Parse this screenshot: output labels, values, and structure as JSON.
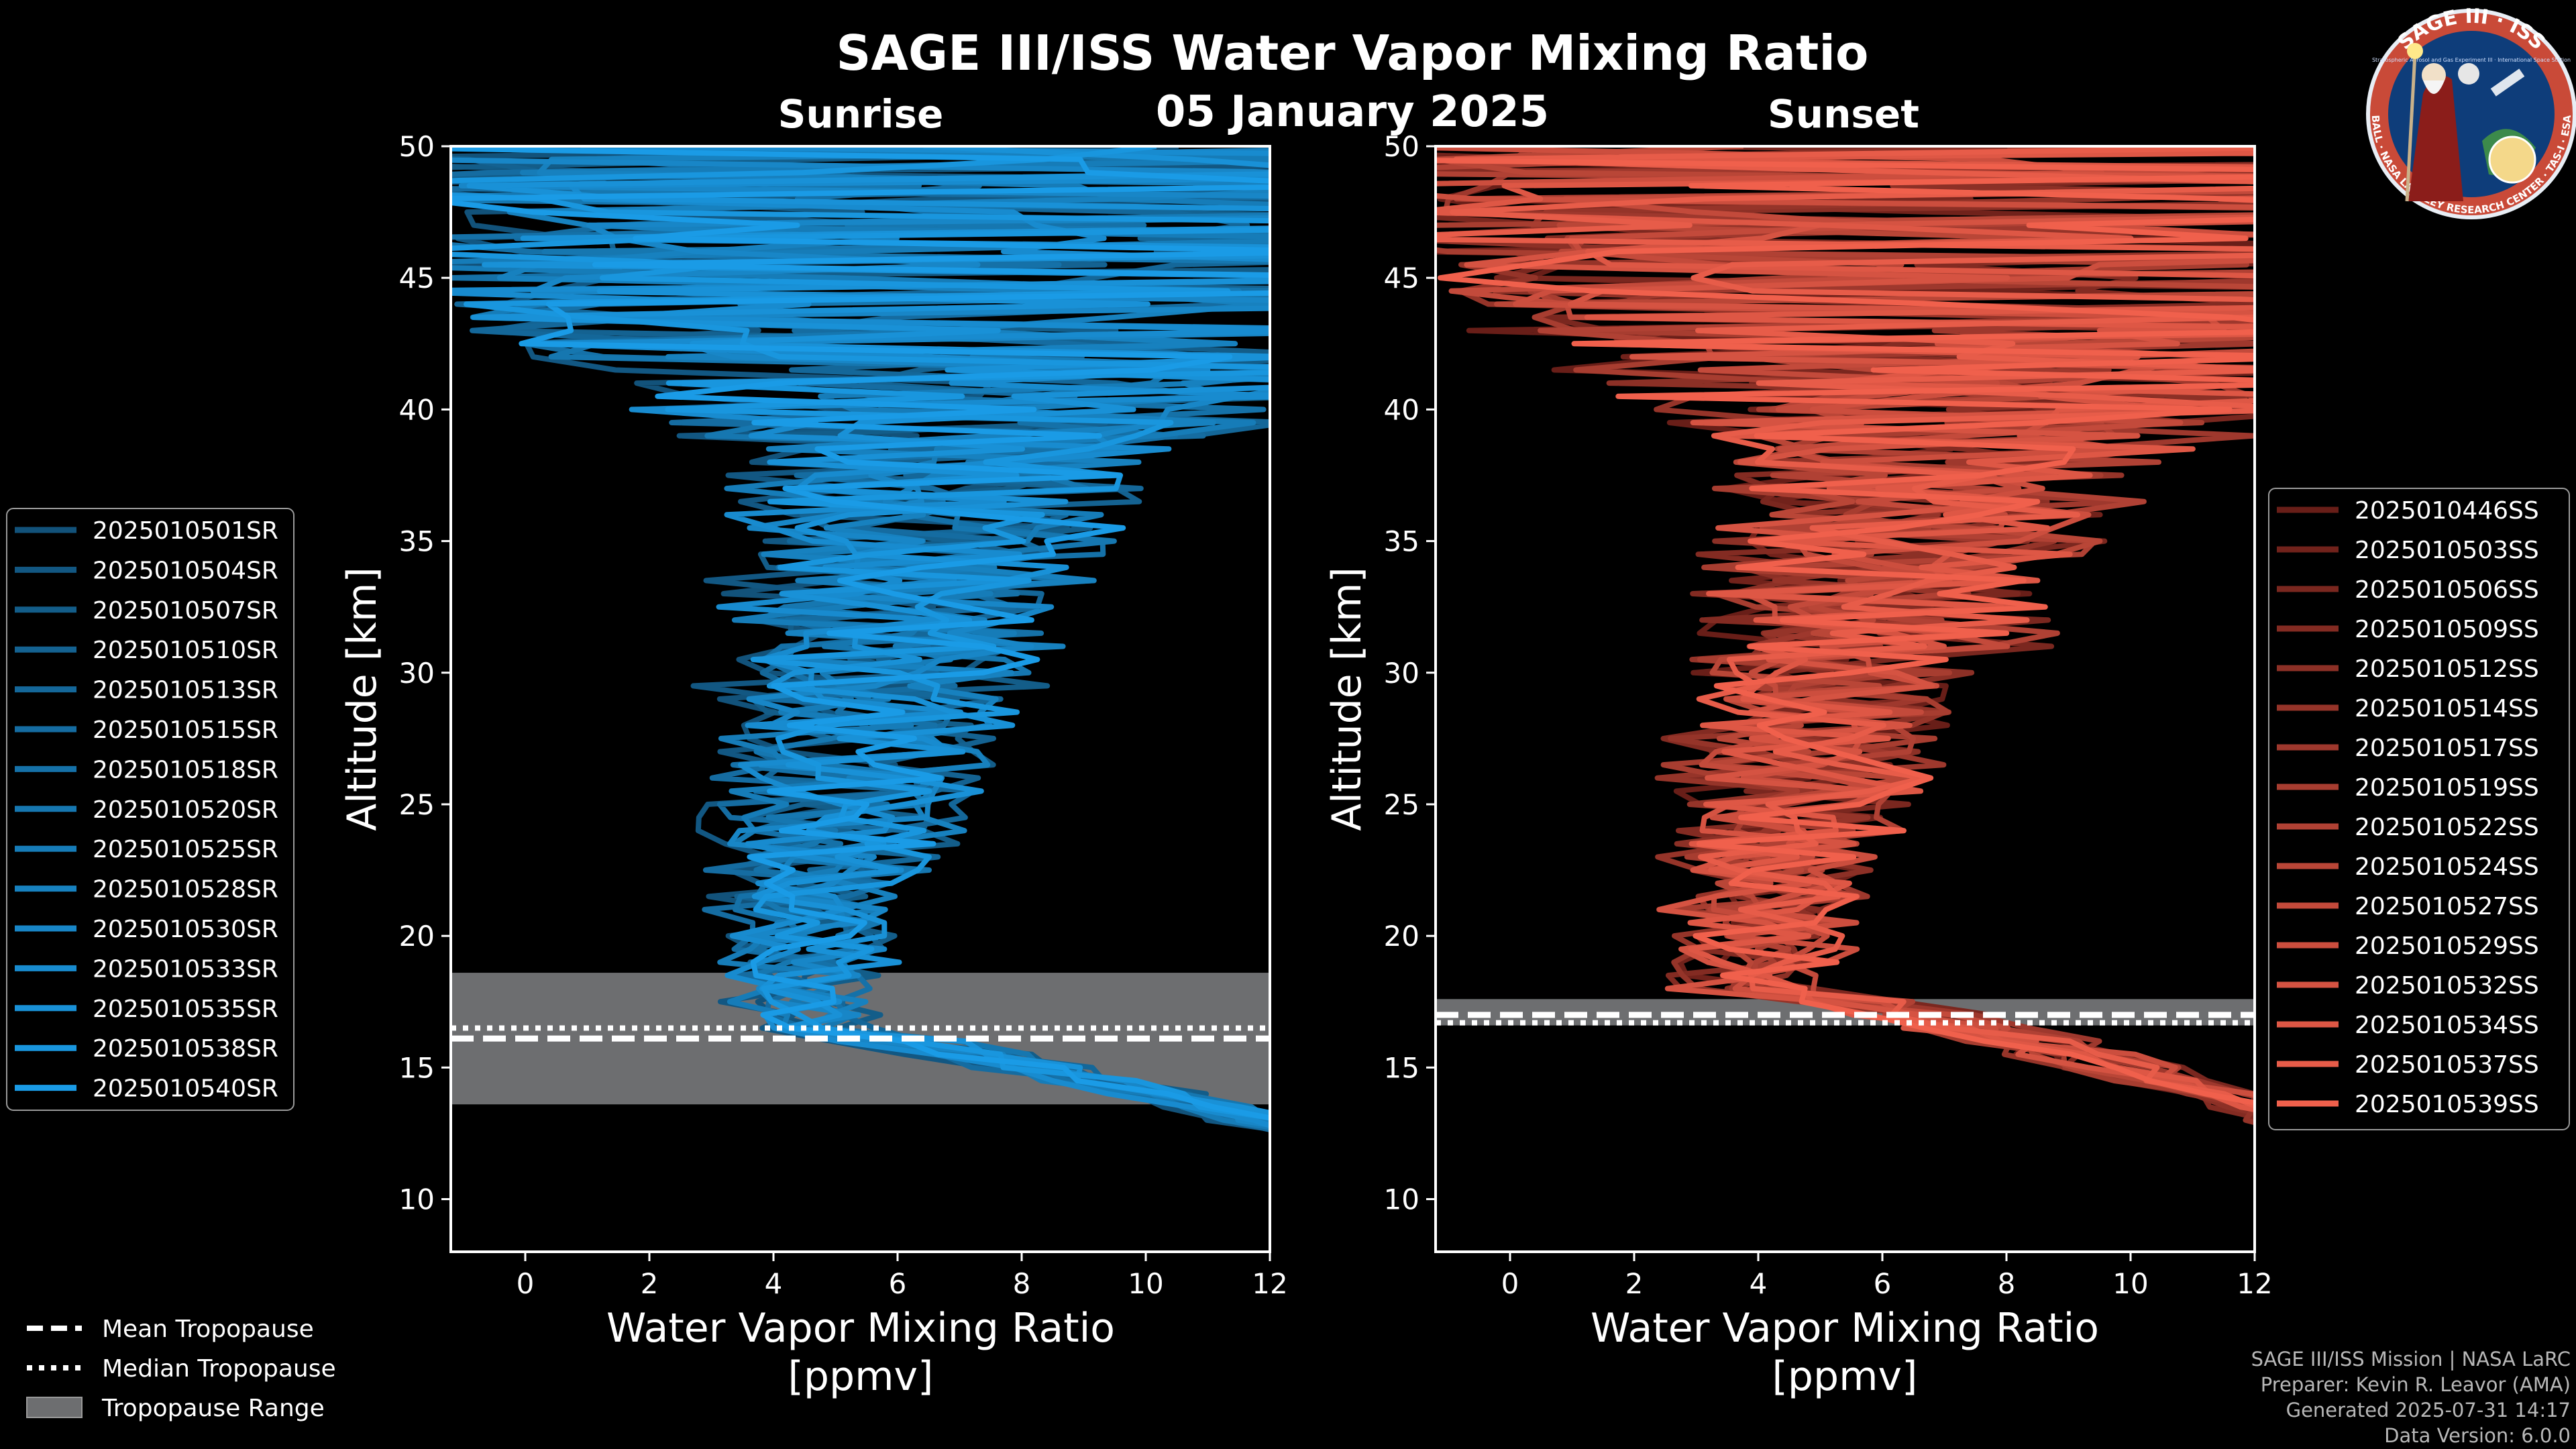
{
  "chart_data": {
    "type": "line",
    "title": "SAGE III/ISS Water Vapor Mixing Ratio",
    "date": "05 January 2025",
    "panels": [
      {
        "name": "sunrise",
        "title": "Sunrise",
        "xlabel": "Water Vapor Mixing Ratio",
        "xunit": "[ppmv]",
        "ylabel": "Altitude [km]",
        "xlim": [
          -1.2,
          12
        ],
        "ylim": [
          8,
          50
        ],
        "xticks": [
          "0",
          "2",
          "4",
          "6",
          "8",
          "10",
          "12"
        ],
        "yticks": [
          "10",
          "15",
          "20",
          "25",
          "30",
          "35",
          "40",
          "45",
          "50"
        ],
        "tropopause": {
          "mean_km": 16.1,
          "median_km": 16.5,
          "range_km": [
            13.6,
            18.6
          ]
        },
        "profile_shape": {
          "min_vmr": 4.4,
          "min_alt_km": 16.5,
          "vmr_50km": 9.0,
          "vmr_10km": 12.0
        },
        "series": [
          "2025010501SR",
          "2025010504SR",
          "2025010507SR",
          "2025010510SR",
          "2025010513SR",
          "2025010515SR",
          "2025010518SR",
          "2025010520SR",
          "2025010525SR",
          "2025010528SR",
          "2025010530SR",
          "2025010533SR",
          "2025010535SR",
          "2025010538SR",
          "2025010540SR"
        ]
      },
      {
        "name": "sunset",
        "title": "Sunset",
        "xlabel": "Water Vapor Mixing Ratio",
        "xunit": "[ppmv]",
        "ylabel": "Altitude [km]",
        "xlim": [
          -1.2,
          12
        ],
        "ylim": [
          8,
          50
        ],
        "xticks": [
          "0",
          "2",
          "4",
          "6",
          "8",
          "10",
          "12"
        ],
        "yticks": [
          "10",
          "15",
          "20",
          "25",
          "30",
          "35",
          "40",
          "45",
          "50"
        ],
        "tropopause": {
          "mean_km": 17.0,
          "median_km": 16.7,
          "range_km": [
            16.6,
            17.6
          ]
        },
        "profile_shape": {
          "min_vmr": 4.0,
          "min_alt_km": 18.0,
          "vmr_50km": 10.0,
          "vmr_10km": 12.0
        },
        "series": [
          "2025010446SS",
          "2025010503SS",
          "2025010506SS",
          "2025010509SS",
          "2025010512SS",
          "2025010514SS",
          "2025010517SS",
          "2025010519SS",
          "2025010522SS",
          "2025010524SS",
          "2025010527SS",
          "2025010529SS",
          "2025010532SS",
          "2025010534SS",
          "2025010537SS",
          "2025010539SS"
        ]
      }
    ],
    "legend": {
      "tropopause_items": [
        "Mean Tropopause",
        "Median Tropopause",
        "Tropopause Range"
      ]
    }
  },
  "colors": {
    "sunrise_dark": "#0f3a56",
    "sunrise_light": "#1a9be6",
    "sunset_dark": "#3a0806",
    "sunset_light": "#f0604c",
    "range_fill": "#6d6e70",
    "background": "#000000",
    "axis": "#ffffff"
  },
  "badge": {
    "name": "SAGE III · ISS",
    "subtitle": "Stratospheric Aerosol and Gas Experiment III · International Space Station",
    "ring": "BALL · NASA LANGLEY RESEARCH CENTER · TAS-I · ESA"
  },
  "footer": {
    "line1": "SAGE III/ISS Mission | NASA LaRC",
    "line2": "Preparer: Kevin R. Leavor (AMA)",
    "line3": "Generated 2025-07-31 14:17",
    "line4": "Data Version: 6.0.0"
  }
}
